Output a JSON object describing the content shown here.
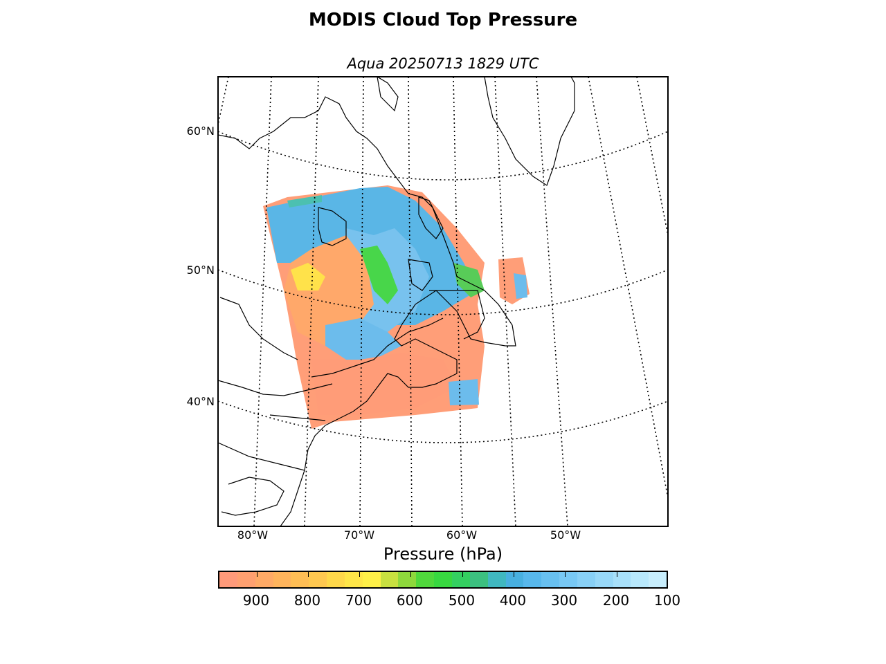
{
  "title": "MODIS Cloud Top Pressure",
  "subtitle": "Aqua 20250713 1829 UTC",
  "map": {
    "lat_labels": [
      "60°N",
      "50°N",
      "40°N"
    ],
    "lon_labels": [
      "80°W",
      "70°W",
      "60°W",
      "50°W"
    ],
    "gridlines": "dotted",
    "colors": {
      "coastline": "#000000",
      "low_cloud": "#ffa07a",
      "mid_low_cloud": "#ffb060",
      "mid_cloud_yellow": "#ffeb3b",
      "mid_cloud_green": "#40d840",
      "high_cloud_blue": "#5ab4e8",
      "very_high_cloud": "#bfe0ff"
    }
  },
  "colorbar": {
    "label": "Pressure (hPa)",
    "ticks": [
      "900",
      "800",
      "700",
      "600",
      "500",
      "400",
      "300",
      "200",
      "100"
    ],
    "colors": [
      "#ff9a7a",
      "#ffa070",
      "#ffaa66",
      "#ffb45c",
      "#ffbe55",
      "#ffc850",
      "#ffd84a",
      "#ffe648",
      "#fff048",
      "#c8e040",
      "#8ed83c",
      "#50d83c",
      "#38d840",
      "#34d060",
      "#3cc080",
      "#40b8c0",
      "#48b0e0",
      "#58b8ec",
      "#68c0f0",
      "#78c8f4",
      "#88d0f6",
      "#98d8f8",
      "#a8e0fa",
      "#b8e8fc",
      "#c8eefd"
    ]
  }
}
